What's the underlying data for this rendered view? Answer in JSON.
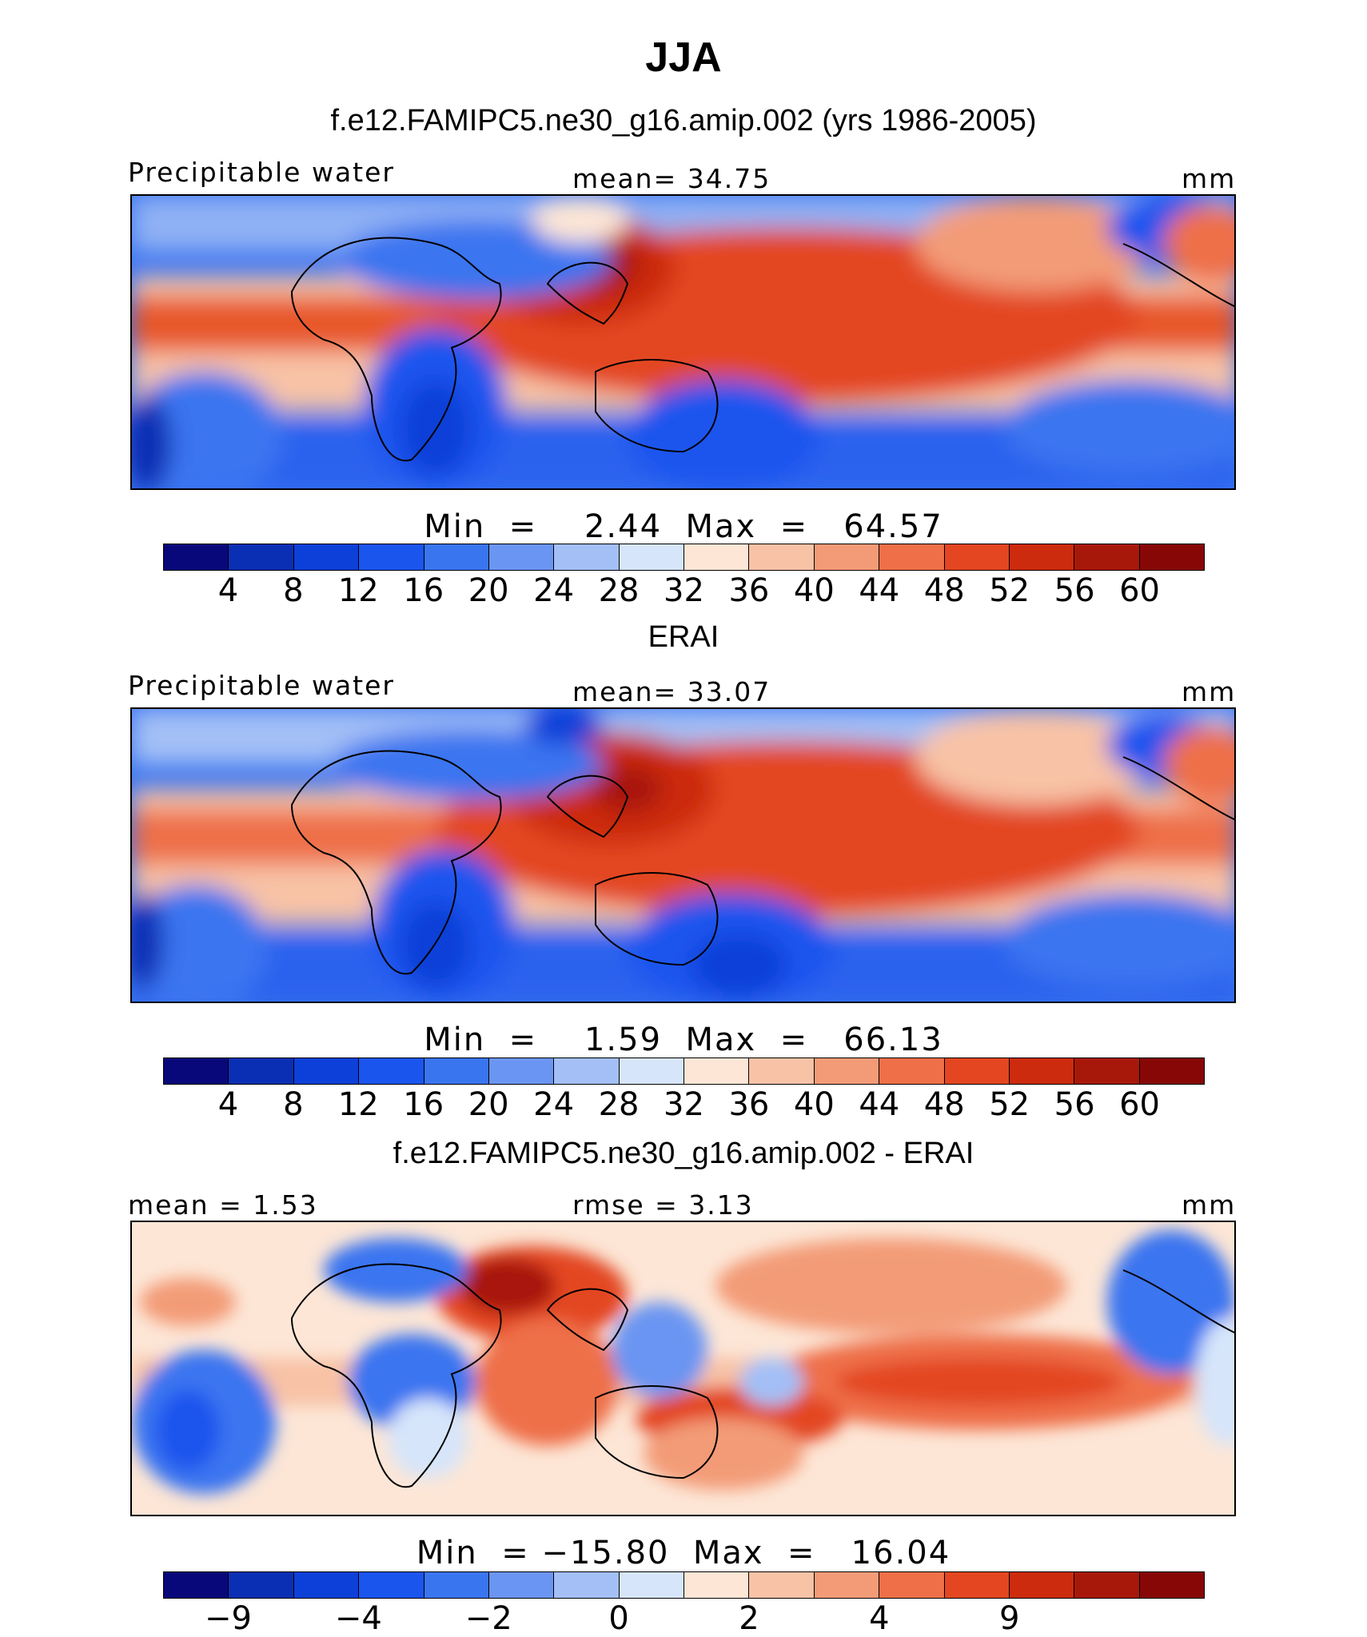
{
  "title": "JJA",
  "panels": [
    {
      "title": "f.e12.FAMIPC5.ne30_g16.amip.002 (yrs 1986-2005)",
      "left_label": "Precipitable water",
      "center_label": "mean=   34.75",
      "right_label": "mm",
      "minmax": "Min  =    2.44  Max  =   64.57",
      "min": 2.44,
      "max": 64.57,
      "tick_labels": [
        "4",
        "8",
        "12",
        "16",
        "20",
        "24",
        "28",
        "32",
        "36",
        "40",
        "44",
        "48",
        "52",
        "56",
        "60"
      ]
    },
    {
      "title": "ERAI",
      "left_label": "Precipitable water",
      "center_label": "mean=   33.07",
      "right_label": "mm",
      "minmax": "Min  =    1.59  Max  =   66.13",
      "min": 1.59,
      "max": 66.13,
      "tick_labels": [
        "4",
        "8",
        "12",
        "16",
        "20",
        "24",
        "28",
        "32",
        "36",
        "40",
        "44",
        "48",
        "52",
        "56",
        "60"
      ]
    },
    {
      "title": "f.e12.FAMIPC5.ne30_g16.amip.002 - ERAI",
      "left_label": "mean  =    1.53",
      "center_label": "rmse  =    3.13",
      "right_label": "mm",
      "minmax": "Min  = −15.80  Max  =   16.04",
      "min": -15.8,
      "max": 16.04,
      "tick_labels": [
        "−9",
        "−4",
        "−2",
        "0",
        "2",
        "4",
        "9"
      ]
    }
  ],
  "colormap": [
    "#08087a",
    "#0a2fb4",
    "#0d40d8",
    "#1a55ee",
    "#3a75f0",
    "#6b95f2",
    "#a3bff6",
    "#d6e5fa",
    "#fde6d6",
    "#f8c2a6",
    "#f39b77",
    "#ee6f48",
    "#e34620",
    "#cc2b0d",
    "#a8180a",
    "#870707"
  ],
  "colormap_diff": [
    "#08087a",
    "#0a2fb4",
    "#0d40d8",
    "#1a55ee",
    "#3a75f0",
    "#6b95f2",
    "#a3bff6",
    "#d6e5fa",
    "#fde6d6",
    "#f8c2a6",
    "#f39b77",
    "#ee6f48",
    "#e34620",
    "#cc2b0d",
    "#a8180a",
    "#870707"
  ]
}
